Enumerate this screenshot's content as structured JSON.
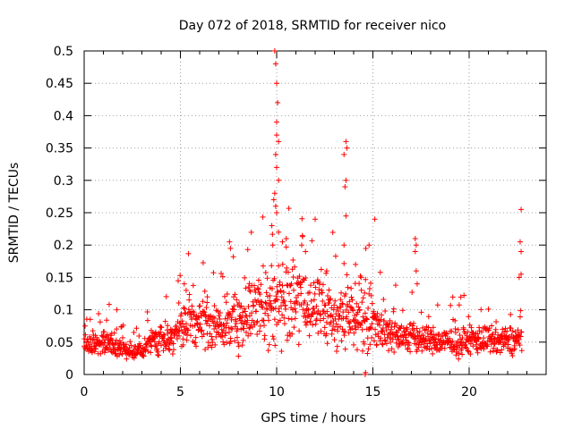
{
  "chart_data": {
    "type": "scatter",
    "title": "Day 072 of 2018, SRMTID for receiver nico",
    "xlabel": "GPS time / hours",
    "ylabel": "SRMTID / TECUs",
    "xlim": [
      0,
      24
    ],
    "ylim": [
      0,
      0.5
    ],
    "x_ticks": [
      0,
      5,
      10,
      15,
      20
    ],
    "x_tick_labels": [
      "0",
      "5",
      "10",
      "15",
      "20"
    ],
    "y_ticks": [
      0,
      0.05,
      0.1,
      0.15,
      0.2,
      0.25,
      0.3,
      0.35,
      0.4,
      0.45,
      0.5
    ],
    "y_tick_labels": [
      "0",
      "0.05",
      "0.1",
      "0.15",
      "0.2",
      "0.25",
      "0.3",
      "0.35",
      "0.4",
      "0.45",
      "0.5"
    ],
    "grid": true,
    "marker": "+",
    "series": [
      {
        "name": "SRMTID",
        "color": "#ff0000",
        "x_start": 0,
        "x_end": 22.75,
        "x_step": 0.016667,
        "baseline_profile": [
          [
            0.0,
            0.045
          ],
          [
            1.0,
            0.05
          ],
          [
            2.0,
            0.04
          ],
          [
            3.0,
            0.035
          ],
          [
            3.5,
            0.05
          ],
          [
            4.5,
            0.06
          ],
          [
            5.5,
            0.08
          ],
          [
            6.5,
            0.075
          ],
          [
            7.5,
            0.08
          ],
          [
            8.5,
            0.09
          ],
          [
            9.5,
            0.11
          ],
          [
            10.5,
            0.12
          ],
          [
            11.5,
            0.11
          ],
          [
            12.5,
            0.095
          ],
          [
            13.5,
            0.09
          ],
          [
            14.5,
            0.1
          ],
          [
            15.5,
            0.07
          ],
          [
            16.5,
            0.06
          ],
          [
            17.5,
            0.055
          ],
          [
            18.5,
            0.05
          ],
          [
            19.5,
            0.05
          ],
          [
            20.5,
            0.055
          ],
          [
            21.5,
            0.05
          ],
          [
            22.75,
            0.055
          ]
        ],
        "highlights": [
          {
            "x": 9.9,
            "y": 0.5
          },
          {
            "x": 9.95,
            "y": 0.48
          },
          {
            "x": 10.0,
            "y": 0.45
          },
          {
            "x": 10.05,
            "y": 0.42
          },
          {
            "x": 10.0,
            "y": 0.39
          },
          {
            "x": 10.0,
            "y": 0.37
          },
          {
            "x": 10.1,
            "y": 0.36
          },
          {
            "x": 9.95,
            "y": 0.34
          },
          {
            "x": 10.0,
            "y": 0.32
          },
          {
            "x": 10.1,
            "y": 0.3
          },
          {
            "x": 9.9,
            "y": 0.28
          },
          {
            "x": 9.85,
            "y": 0.27
          },
          {
            "x": 9.95,
            "y": 0.26
          },
          {
            "x": 10.0,
            "y": 0.25
          },
          {
            "x": 9.75,
            "y": 0.23
          },
          {
            "x": 10.1,
            "y": 0.22
          },
          {
            "x": 9.8,
            "y": 0.2
          },
          {
            "x": 10.3,
            "y": 0.205
          },
          {
            "x": 13.6,
            "y": 0.36
          },
          {
            "x": 13.65,
            "y": 0.35
          },
          {
            "x": 13.5,
            "y": 0.34
          },
          {
            "x": 13.6,
            "y": 0.3
          },
          {
            "x": 13.55,
            "y": 0.29
          },
          {
            "x": 13.6,
            "y": 0.245
          },
          {
            "x": 13.5,
            "y": 0.2
          },
          {
            "x": 14.8,
            "y": 0.2
          },
          {
            "x": 15.1,
            "y": 0.24
          },
          {
            "x": 17.2,
            "y": 0.21
          },
          {
            "x": 17.25,
            "y": 0.2
          },
          {
            "x": 17.2,
            "y": 0.19
          },
          {
            "x": 17.25,
            "y": 0.16
          },
          {
            "x": 17.3,
            "y": 0.14
          },
          {
            "x": 7.55,
            "y": 0.205
          },
          {
            "x": 7.6,
            "y": 0.195
          },
          {
            "x": 22.7,
            "y": 0.255
          },
          {
            "x": 22.65,
            "y": 0.205
          },
          {
            "x": 22.7,
            "y": 0.19
          },
          {
            "x": 22.7,
            "y": 0.155
          },
          {
            "x": 22.6,
            "y": 0.15
          },
          {
            "x": 11.5,
            "y": 0.19
          },
          {
            "x": 11.3,
            "y": 0.2
          },
          {
            "x": 10.5,
            "y": 0.21
          },
          {
            "x": 12.6,
            "y": 0.16
          },
          {
            "x": 14.1,
            "y": 0.17
          },
          {
            "x": 5.2,
            "y": 0.14
          },
          {
            "x": 5.3,
            "y": 0.13
          },
          {
            "x": 6.4,
            "y": 0.12
          },
          {
            "x": 8.6,
            "y": 0.13
          },
          {
            "x": 14.6,
            "y": 0.0
          },
          {
            "x": 14.62,
            "y": 0.003
          }
        ]
      }
    ]
  }
}
